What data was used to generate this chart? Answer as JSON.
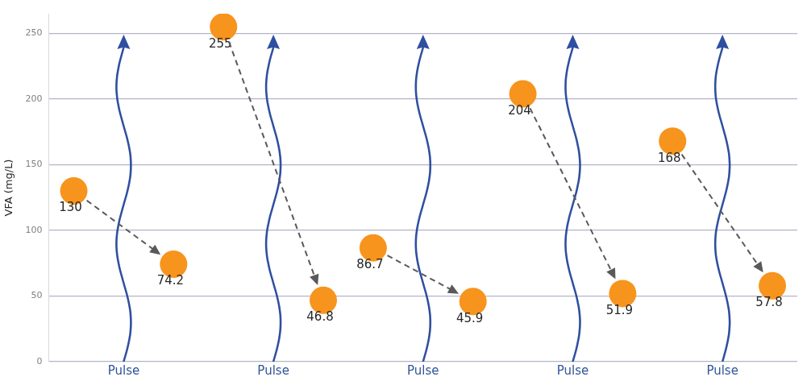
{
  "chart_data": {
    "type": "scatter",
    "ylabel": "VFA (mg/L)",
    "categories": [
      null,
      "Pulse",
      null,
      null,
      "Pulse",
      null,
      null,
      "Pulse",
      null,
      null,
      "Pulse",
      null,
      null,
      "Pulse",
      null
    ],
    "series": [
      {
        "color": "#f7941d",
        "values": [
          130,
          null,
          74.2,
          255,
          null,
          46.8,
          86.7,
          null,
          45.9,
          204,
          null,
          51.9,
          168,
          null,
          57.8
        ]
      }
    ],
    "ylim": [
      0,
      265
    ],
    "yticks": [
      0,
      50,
      100,
      150,
      200,
      250
    ],
    "grid": "y",
    "marker": "circle",
    "data_labels": true,
    "legend": false
  }
}
